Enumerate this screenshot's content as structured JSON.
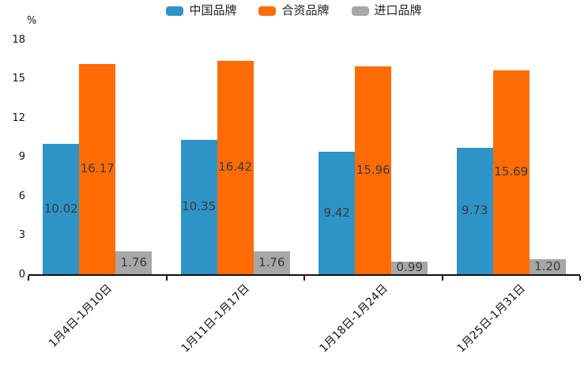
{
  "chart_data": {
    "type": "bar",
    "title": "",
    "ylabel": "%",
    "categories": [
      "1月4日-1月10日",
      "1月11日-1月17日",
      "1月18日-1月24日",
      "1月25日-1月31日"
    ],
    "series": [
      {
        "name": "中国品牌",
        "color": "#2E94C8",
        "values": [
          10.02,
          10.35,
          9.42,
          9.73
        ]
      },
      {
        "name": "合资品牌",
        "color": "#FF6C05",
        "values": [
          16.17,
          16.42,
          15.96,
          15.69
        ]
      },
      {
        "name": "进口品牌",
        "color": "#A7A7A7",
        "values": [
          1.76,
          1.76,
          0.99,
          1.2
        ]
      }
    ],
    "ylim": [
      0,
      18
    ],
    "yticks": [
      0,
      3,
      6,
      9,
      12,
      15,
      18
    ],
    "grid": false,
    "legend_position": "top",
    "value_label_decimals": 2,
    "value_label_position": "inside-middle",
    "value_label_color": "#3a3a3a",
    "axis_color": "#111111"
  }
}
